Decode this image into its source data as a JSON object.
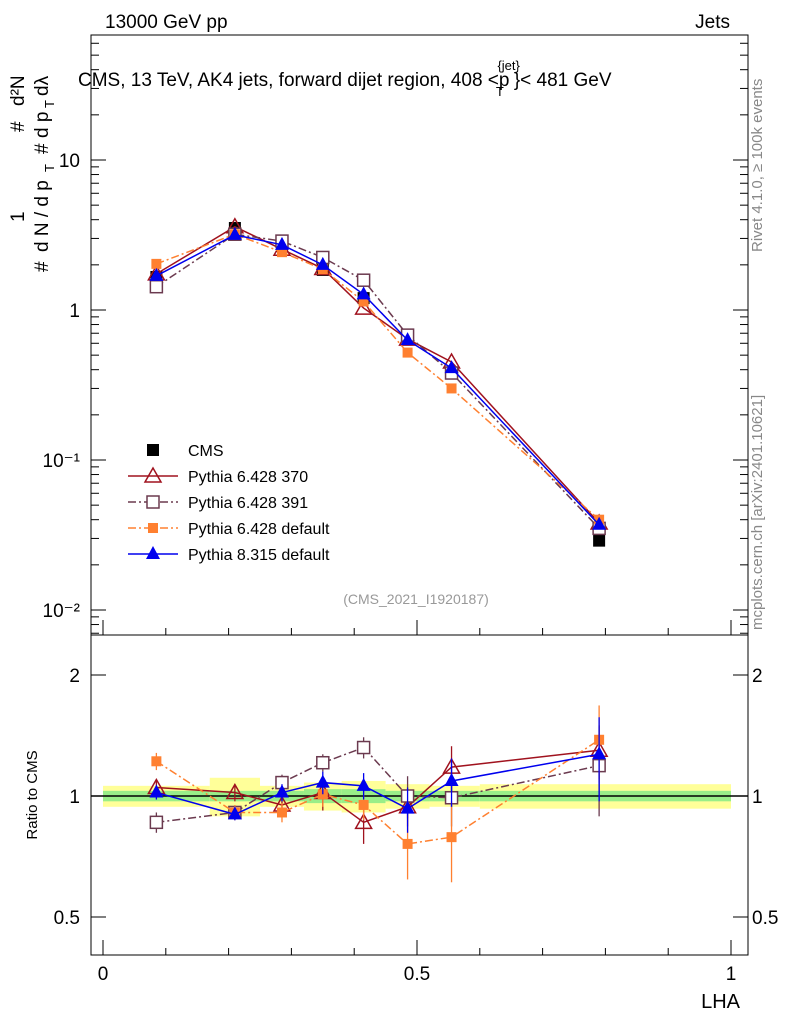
{
  "header": {
    "left": "13000 GeV pp",
    "right": "Jets"
  },
  "side_labels": {
    "rivet": "Rivet 4.1.0, ≥ 100k events",
    "mcplots": "mcplots.cern.ch [arXiv:2401.10621]"
  },
  "chart_data": {
    "type": "line",
    "title": "CMS, 13 TeV, AK4 jets, forward dijet region, 408 < p_T^{jet} < 481 GeV",
    "title_parts": {
      "a": "CMS, 13 TeV, AK4 jets, forward dijet region, 408 <p",
      "sub": "T",
      "sup": "{jet}",
      "b": "}< 481 GeV"
    },
    "ylabel": "1/(dN/dp_T) d²N/(dp_T dλ)",
    "ylabel_parts": {
      "hash": "#",
      "one": "1",
      "dn": "d N / d p",
      "t": "T",
      "d2n": "d²N",
      "dp": "d p",
      "dl": "dλ"
    },
    "xlabel": "LHA",
    "ratio_ylabel": "Ratio to CMS",
    "watermark": "(CMS_2021_I1920187)",
    "xlim": [
      -0.02,
      1.03
    ],
    "ylim": [
      0.007,
      70
    ],
    "yscale": "log",
    "ratio_ylim": [
      0.4,
      2.5
    ],
    "x_ticks": [
      "0",
      "0.5",
      "1"
    ],
    "y_ticks": [
      {
        "v": 10,
        "t": "10"
      },
      {
        "v": 1,
        "t": "1"
      },
      {
        "v": 0.1,
        "t": "10⁻¹"
      },
      {
        "v": 0.01,
        "t": "10⁻²"
      }
    ],
    "ratio_ticks": [
      {
        "v": 2,
        "t": "2"
      },
      {
        "v": 1,
        "t": "1"
      },
      {
        "v": 0.5,
        "t": "0.5"
      }
    ],
    "x": [
      0.085,
      0.21,
      0.285,
      0.35,
      0.415,
      0.485,
      0.555,
      0.79
    ],
    "band_edges": [
      0,
      0.17,
      0.25,
      0.32,
      0.38,
      0.45,
      0.52,
      0.6,
      1.0
    ],
    "band_inner": [
      0.03,
      0.03,
      0.03,
      0.04,
      0.04,
      0.03,
      0.03,
      0.03
    ],
    "band_outer": [
      0.06,
      0.11,
      0.06,
      0.08,
      0.09,
      0.07,
      0.06,
      0.07
    ],
    "series": [
      {
        "name": "CMS",
        "color": "#000000",
        "marker": "square-filled",
        "line": "none",
        "values": [
          1.66,
          3.52,
          2.67,
          1.85,
          1.2,
          0.68,
          0.38,
          0.029
        ]
      },
      {
        "name": "Pythia 6.428 370",
        "color": "#a0121e",
        "marker": "triangle-open",
        "line": "solid",
        "values": [
          1.74,
          3.59,
          2.54,
          1.89,
          1.03,
          0.64,
          0.45,
          0.038
        ],
        "ratio": [
          1.05,
          1.02,
          0.95,
          1.02,
          0.86,
          0.94,
          1.18,
          1.3
        ],
        "ratio_err": [
          0.04,
          0.05,
          0.04,
          0.1,
          0.1,
          0.1,
          0.15,
          0.2
        ]
      },
      {
        "name": "Pythia 6.428 391",
        "color": "#6b3a4f",
        "marker": "square-open",
        "line": "dashdot",
        "values": [
          1.43,
          3.2,
          2.88,
          2.24,
          1.58,
          0.68,
          0.38,
          0.035
        ],
        "ratio": [
          0.86,
          0.91,
          1.08,
          1.21,
          1.32,
          1.0,
          0.99,
          1.19
        ],
        "ratio_err": [
          0.05,
          0.03,
          0.05,
          0.06,
          0.08,
          0.12,
          0.15,
          0.3
        ]
      },
      {
        "name": "Pythia 6.428 default",
        "color": "#ff8030",
        "marker": "square-filled-small",
        "line": "dashdot",
        "values": [
          2.03,
          3.2,
          2.43,
          1.87,
          1.14,
          0.52,
          0.3,
          0.04
        ],
        "ratio": [
          1.22,
          0.91,
          0.91,
          1.01,
          0.95,
          0.76,
          0.79,
          1.38
        ],
        "ratio_err": [
          0.06,
          0.04,
          0.05,
          0.07,
          0.08,
          0.14,
          0.18,
          0.3
        ]
      },
      {
        "name": "Pythia 8.315 default",
        "color": "#0000ee",
        "marker": "triangle-filled",
        "line": "solid",
        "values": [
          1.69,
          3.17,
          2.72,
          2.0,
          1.27,
          0.63,
          0.41,
          0.037
        ],
        "ratio": [
          1.02,
          0.9,
          1.02,
          1.08,
          1.06,
          0.93,
          1.09,
          1.27
        ],
        "ratio_err": [
          0.04,
          0.03,
          0.05,
          0.07,
          0.08,
          0.12,
          0.15,
          0.3
        ]
      }
    ],
    "legend_position": "lower-left"
  }
}
